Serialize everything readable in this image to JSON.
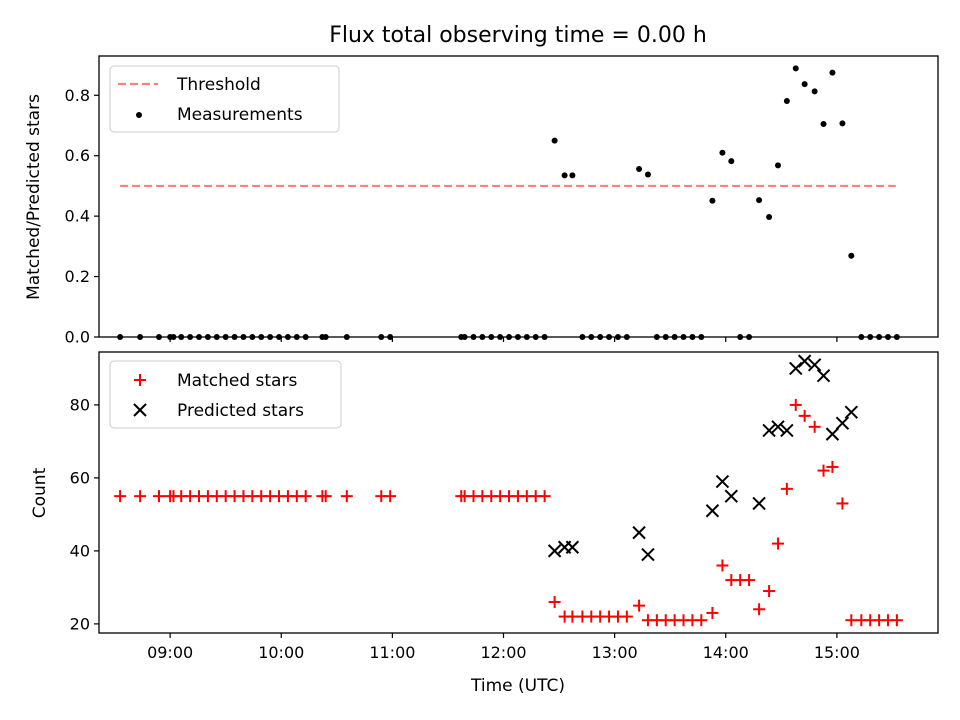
{
  "chart_data": [
    {
      "type": "scatter",
      "title": "Flux total observing time = 0.00 h",
      "xlabel": "",
      "ylabel": "Matched/Predicted stars",
      "xlim": [
        8.36,
        15.91
      ],
      "ylim": [
        0.0,
        0.93
      ],
      "yticks": [
        0.0,
        0.2,
        0.4,
        0.6,
        0.8
      ],
      "ytick_labels": [
        "0.0",
        "0.2",
        "0.4",
        "0.6",
        "0.8"
      ],
      "xticks": [
        9,
        10,
        11,
        12,
        13,
        14,
        15
      ],
      "grid": false,
      "legend_position": "top-left",
      "threshold": {
        "name": "Threshold",
        "value": 0.5,
        "x_range": [
          8.55,
          15.53
        ],
        "color": "#ff7f7f"
      },
      "series": [
        {
          "name": "Measurements",
          "marker": "dot",
          "color": "#000000",
          "points": [
            [
              8.55,
              0.0
            ],
            [
              8.73,
              0.0
            ],
            [
              8.9,
              0.0
            ],
            [
              9.0,
              0.0
            ],
            [
              9.03,
              0.0
            ],
            [
              9.1,
              0.0
            ],
            [
              9.18,
              0.0
            ],
            [
              9.26,
              0.0
            ],
            [
              9.34,
              0.0
            ],
            [
              9.42,
              0.0
            ],
            [
              9.5,
              0.0
            ],
            [
              9.58,
              0.0
            ],
            [
              9.66,
              0.0
            ],
            [
              9.74,
              0.0
            ],
            [
              9.82,
              0.0
            ],
            [
              9.9,
              0.0
            ],
            [
              9.98,
              0.0
            ],
            [
              10.06,
              0.0
            ],
            [
              10.14,
              0.0
            ],
            [
              10.22,
              0.0
            ],
            [
              10.37,
              0.0
            ],
            [
              10.4,
              0.0
            ],
            [
              10.59,
              0.0
            ],
            [
              10.9,
              0.0
            ],
            [
              10.98,
              0.0
            ],
            [
              11.62,
              0.0
            ],
            [
              11.65,
              0.0
            ],
            [
              11.73,
              0.0
            ],
            [
              11.81,
              0.0
            ],
            [
              11.89,
              0.0
            ],
            [
              11.97,
              0.0
            ],
            [
              12.05,
              0.0
            ],
            [
              12.13,
              0.0
            ],
            [
              12.21,
              0.0
            ],
            [
              12.29,
              0.0
            ],
            [
              12.37,
              0.0
            ],
            [
              12.46,
              0.65
            ],
            [
              12.55,
              0.535
            ],
            [
              12.62,
              0.535
            ],
            [
              12.71,
              0.0
            ],
            [
              12.79,
              0.0
            ],
            [
              12.87,
              0.0
            ],
            [
              12.95,
              0.0
            ],
            [
              13.03,
              0.0
            ],
            [
              13.11,
              0.0
            ],
            [
              13.22,
              0.556
            ],
            [
              13.3,
              0.538
            ],
            [
              13.38,
              0.0
            ],
            [
              13.46,
              0.0
            ],
            [
              13.54,
              0.0
            ],
            [
              13.62,
              0.0
            ],
            [
              13.7,
              0.0
            ],
            [
              13.78,
              0.0
            ],
            [
              13.88,
              0.451
            ],
            [
              13.97,
              0.61
            ],
            [
              14.05,
              0.582
            ],
            [
              14.13,
              0.0
            ],
            [
              14.21,
              0.0
            ],
            [
              14.3,
              0.453
            ],
            [
              14.39,
              0.397
            ],
            [
              14.47,
              0.568
            ],
            [
              14.55,
              0.781
            ],
            [
              14.63,
              0.889
            ],
            [
              14.71,
              0.837
            ],
            [
              14.8,
              0.813
            ],
            [
              14.88,
              0.705
            ],
            [
              14.96,
              0.875
            ],
            [
              15.05,
              0.707
            ],
            [
              15.13,
              0.269
            ],
            [
              15.22,
              0.0
            ],
            [
              15.3,
              0.0
            ],
            [
              15.38,
              0.0
            ],
            [
              15.46,
              0.0
            ],
            [
              15.54,
              0.0
            ]
          ]
        }
      ]
    },
    {
      "type": "scatter",
      "title": "",
      "xlabel": "Time (UTC)",
      "ylabel": "Count",
      "xlim": [
        8.36,
        15.91
      ],
      "ylim": [
        17.5,
        94.5
      ],
      "yticks": [
        20,
        40,
        60,
        80
      ],
      "ytick_labels": [
        "20",
        "40",
        "60",
        "80"
      ],
      "xticks": [
        9,
        10,
        11,
        12,
        13,
        14,
        15
      ],
      "xtick_labels": [
        "09:00",
        "10:00",
        "11:00",
        "12:00",
        "13:00",
        "14:00",
        "15:00"
      ],
      "grid": false,
      "legend_position": "top-left",
      "series": [
        {
          "name": "Matched stars",
          "marker": "plus",
          "color": "#ff0000",
          "points": [
            [
              8.55,
              55
            ],
            [
              8.73,
              55
            ],
            [
              8.9,
              55
            ],
            [
              9.0,
              55
            ],
            [
              9.03,
              55
            ],
            [
              9.1,
              55
            ],
            [
              9.18,
              55
            ],
            [
              9.26,
              55
            ],
            [
              9.34,
              55
            ],
            [
              9.42,
              55
            ],
            [
              9.5,
              55
            ],
            [
              9.58,
              55
            ],
            [
              9.66,
              55
            ],
            [
              9.74,
              55
            ],
            [
              9.82,
              55
            ],
            [
              9.9,
              55
            ],
            [
              9.98,
              55
            ],
            [
              10.06,
              55
            ],
            [
              10.14,
              55
            ],
            [
              10.22,
              55
            ],
            [
              10.37,
              55
            ],
            [
              10.4,
              55
            ],
            [
              10.59,
              55
            ],
            [
              10.9,
              55
            ],
            [
              10.98,
              55
            ],
            [
              11.62,
              55
            ],
            [
              11.65,
              55
            ],
            [
              11.73,
              55
            ],
            [
              11.81,
              55
            ],
            [
              11.89,
              55
            ],
            [
              11.97,
              55
            ],
            [
              12.05,
              55
            ],
            [
              12.13,
              55
            ],
            [
              12.21,
              55
            ],
            [
              12.29,
              55
            ],
            [
              12.37,
              55
            ],
            [
              12.46,
              26
            ],
            [
              12.55,
              22
            ],
            [
              12.62,
              22
            ],
            [
              12.71,
              22
            ],
            [
              12.79,
              22
            ],
            [
              12.87,
              22
            ],
            [
              12.95,
              22
            ],
            [
              13.03,
              22
            ],
            [
              13.11,
              22
            ],
            [
              13.22,
              25
            ],
            [
              13.3,
              21
            ],
            [
              13.38,
              21
            ],
            [
              13.46,
              21
            ],
            [
              13.54,
              21
            ],
            [
              13.62,
              21
            ],
            [
              13.7,
              21
            ],
            [
              13.78,
              21
            ],
            [
              13.88,
              23
            ],
            [
              13.97,
              36
            ],
            [
              14.05,
              32
            ],
            [
              14.13,
              32
            ],
            [
              14.21,
              32
            ],
            [
              14.3,
              24
            ],
            [
              14.39,
              29
            ],
            [
              14.47,
              42
            ],
            [
              14.55,
              57
            ],
            [
              14.63,
              80
            ],
            [
              14.71,
              77
            ],
            [
              14.8,
              74
            ],
            [
              14.88,
              62
            ],
            [
              14.96,
              63
            ],
            [
              15.05,
              53
            ],
            [
              15.13,
              21
            ],
            [
              15.22,
              21
            ],
            [
              15.3,
              21
            ],
            [
              15.38,
              21
            ],
            [
              15.46,
              21
            ],
            [
              15.54,
              21
            ]
          ]
        },
        {
          "name": "Predicted stars",
          "marker": "x",
          "color": "#000000",
          "points": [
            [
              12.46,
              40
            ],
            [
              12.55,
              41
            ],
            [
              12.62,
              41
            ],
            [
              13.22,
              45
            ],
            [
              13.3,
              39
            ],
            [
              13.88,
              51
            ],
            [
              13.97,
              59
            ],
            [
              14.05,
              55
            ],
            [
              14.3,
              53
            ],
            [
              14.39,
              73
            ],
            [
              14.47,
              74
            ],
            [
              14.55,
              73
            ],
            [
              14.63,
              90
            ],
            [
              14.71,
              92
            ],
            [
              14.8,
              91
            ],
            [
              14.88,
              88
            ],
            [
              14.96,
              72
            ],
            [
              15.05,
              75
            ],
            [
              15.13,
              78
            ]
          ]
        }
      ]
    }
  ]
}
